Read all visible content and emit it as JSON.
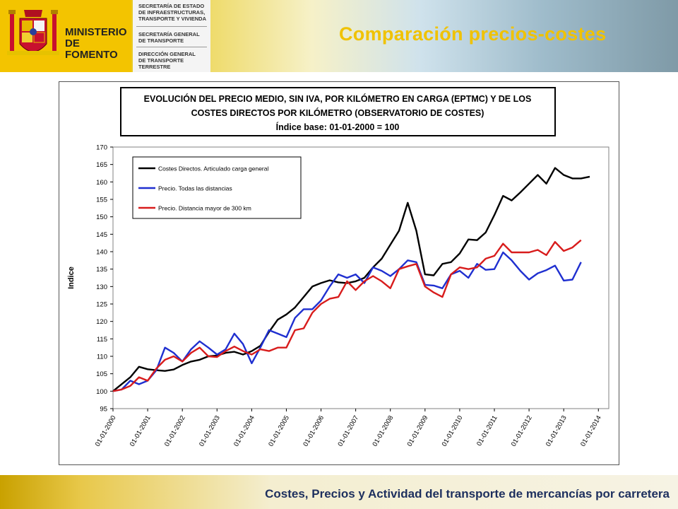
{
  "header": {
    "ministry_line1": "MINISTERIO",
    "ministry_line2": "DE FOMENTO",
    "dept_lines_1": [
      "SECRETARÍA DE ESTADO",
      "DE INFRAESTRUCTURAS,",
      "TRANSPORTE Y VIVIENDA"
    ],
    "dept_lines_2": [
      "SECRETARÍA GENERAL",
      "DE TRANSPORTE"
    ],
    "dept_lines_3": [
      "DIRECCIÓN GENERAL",
      "DE TRANSPORTE",
      "TERRESTRE"
    ],
    "slide_title": "Comparación precios-costes",
    "crest_icon": "coat-of-arms-icon"
  },
  "footer": {
    "text": "Costes, Precios y Actividad del transporte de mercancías por carretera"
  },
  "colors": {
    "accent_yellow": "#f0c200",
    "footer_blue": "#1d2f5e",
    "series_costes": "#000000",
    "series_todas": "#1f2fd0",
    "series_300": "#d81c1c"
  },
  "chart_data": {
    "type": "line",
    "title_lines": [
      "EVOLUCIÓN DEL PRECIO MEDIO, SIN IVA, POR KILÓMETRO EN CARGA (EPTMC) Y DE LOS",
      "COSTES DIRECTOS POR KILÓMETRO (OBSERVATORIO DE COSTES)",
      "Índice base: 01-01-2000 = 100"
    ],
    "ylabel": "Indice",
    "xlabel": "",
    "ylim": [
      95,
      170
    ],
    "yticks": [
      95,
      100,
      105,
      110,
      115,
      120,
      125,
      130,
      135,
      140,
      145,
      150,
      155,
      160,
      165,
      170
    ],
    "xlim": [
      2000,
      2014.3
    ],
    "xtick_labels": [
      "01-01-2000",
      "01-01-2001",
      "01-01-2002",
      "01-01-2003",
      "01-01-2004",
      "01-01-2005",
      "01-01-2006",
      "01-01-2007",
      "01-01-2008",
      "01-01-2009",
      "01-01-2010",
      "01-01-2011",
      "01-01-2012",
      "01-01-2013",
      "01-01-2014"
    ],
    "grid": false,
    "legend": "top-left",
    "series": [
      {
        "name": "Costes Directos. Articulado carga general",
        "color": "#000000",
        "points": [
          [
            2000.0,
            100
          ],
          [
            2000.5,
            104
          ],
          [
            2000.75,
            107
          ],
          [
            2001.0,
            106.3
          ],
          [
            2001.25,
            106
          ],
          [
            2001.5,
            105.8
          ],
          [
            2001.75,
            106.2
          ],
          [
            2002.0,
            107.5
          ],
          [
            2002.25,
            108.5
          ],
          [
            2002.5,
            109
          ],
          [
            2002.75,
            110
          ],
          [
            2003.0,
            110.2
          ],
          [
            2003.25,
            111
          ],
          [
            2003.5,
            111.3
          ],
          [
            2003.75,
            110.5
          ],
          [
            2004.0,
            111.5
          ],
          [
            2004.25,
            113
          ],
          [
            2004.5,
            117
          ],
          [
            2004.75,
            120.5
          ],
          [
            2005.0,
            122
          ],
          [
            2005.25,
            124
          ],
          [
            2005.5,
            127
          ],
          [
            2005.75,
            130
          ],
          [
            2006.0,
            131
          ],
          [
            2006.25,
            131.8
          ],
          [
            2006.5,
            131.2
          ],
          [
            2006.75,
            131
          ],
          [
            2007.0,
            131.5
          ],
          [
            2007.25,
            132.5
          ],
          [
            2007.5,
            135.5
          ],
          [
            2007.75,
            138
          ],
          [
            2008.0,
            142
          ],
          [
            2008.25,
            146
          ],
          [
            2008.5,
            154
          ],
          [
            2008.75,
            146
          ],
          [
            2009.0,
            133.5
          ],
          [
            2009.25,
            133.2
          ],
          [
            2009.5,
            136.5
          ],
          [
            2009.75,
            137
          ],
          [
            2010.0,
            139.5
          ],
          [
            2010.25,
            143.5
          ],
          [
            2010.5,
            143.3
          ],
          [
            2010.75,
            145.5
          ],
          [
            2011.0,
            150.5
          ],
          [
            2011.25,
            156
          ],
          [
            2011.5,
            154.7
          ],
          [
            2011.75,
            157
          ],
          [
            2012.0,
            159.5
          ],
          [
            2012.25,
            162
          ],
          [
            2012.5,
            159.5
          ],
          [
            2012.75,
            164
          ],
          [
            2013.0,
            162
          ],
          [
            2013.25,
            161
          ],
          [
            2013.5,
            161
          ],
          [
            2013.75,
            161.5
          ]
        ]
      },
      {
        "name": "Precio. Todas las distancias",
        "color": "#1f2fd0",
        "points": [
          [
            2000.0,
            100
          ],
          [
            2000.25,
            100.5
          ],
          [
            2000.5,
            103
          ],
          [
            2000.75,
            102
          ],
          [
            2001.0,
            103
          ],
          [
            2001.25,
            106
          ],
          [
            2001.5,
            112.5
          ],
          [
            2001.75,
            111
          ],
          [
            2002.0,
            108.5
          ],
          [
            2002.25,
            112
          ],
          [
            2002.5,
            114.3
          ],
          [
            2002.75,
            112.5
          ],
          [
            2003.0,
            110.5
          ],
          [
            2003.25,
            112
          ],
          [
            2003.5,
            116.5
          ],
          [
            2003.75,
            113.5
          ],
          [
            2004.0,
            108
          ],
          [
            2004.25,
            112.5
          ],
          [
            2004.5,
            117.5
          ],
          [
            2004.75,
            116.5
          ],
          [
            2005.0,
            115.5
          ],
          [
            2005.25,
            121
          ],
          [
            2005.5,
            123.5
          ],
          [
            2005.75,
            123.5
          ],
          [
            2006.0,
            126
          ],
          [
            2006.25,
            130
          ],
          [
            2006.5,
            133.5
          ],
          [
            2006.75,
            132.5
          ],
          [
            2007.0,
            133.5
          ],
          [
            2007.25,
            131
          ],
          [
            2007.5,
            135.5
          ],
          [
            2007.75,
            134.5
          ],
          [
            2008.0,
            133
          ],
          [
            2008.25,
            135
          ],
          [
            2008.5,
            137.5
          ],
          [
            2008.75,
            137
          ],
          [
            2009.0,
            130.5
          ],
          [
            2009.25,
            130.3
          ],
          [
            2009.5,
            129.5
          ],
          [
            2009.75,
            133.5
          ],
          [
            2010.0,
            134.5
          ],
          [
            2010.25,
            132.5
          ],
          [
            2010.5,
            136.5
          ],
          [
            2010.75,
            134.8
          ],
          [
            2011.0,
            135
          ],
          [
            2011.25,
            139.8
          ],
          [
            2011.5,
            137.5
          ],
          [
            2011.75,
            134.5
          ],
          [
            2012.0,
            132
          ],
          [
            2012.25,
            133.8
          ],
          [
            2012.5,
            134.7
          ],
          [
            2012.75,
            136
          ],
          [
            2013.0,
            131.7
          ],
          [
            2013.25,
            132
          ],
          [
            2013.5,
            137
          ]
        ]
      },
      {
        "name": "Precio. Distancia mayor de 300 km",
        "color": "#d81c1c",
        "points": [
          [
            2000.0,
            100
          ],
          [
            2000.25,
            100.5
          ],
          [
            2000.5,
            101.5
          ],
          [
            2000.75,
            104
          ],
          [
            2001.0,
            103
          ],
          [
            2001.25,
            106.5
          ],
          [
            2001.5,
            109
          ],
          [
            2001.75,
            110
          ],
          [
            2002.0,
            108.5
          ],
          [
            2002.25,
            111
          ],
          [
            2002.5,
            112.5
          ],
          [
            2002.75,
            110
          ],
          [
            2003.0,
            109.8
          ],
          [
            2003.25,
            111.5
          ],
          [
            2003.5,
            112.8
          ],
          [
            2003.75,
            111.5
          ],
          [
            2004.0,
            110.5
          ],
          [
            2004.25,
            112
          ],
          [
            2004.5,
            111.5
          ],
          [
            2004.75,
            112.5
          ],
          [
            2005.0,
            112.5
          ],
          [
            2005.25,
            117.5
          ],
          [
            2005.5,
            118
          ],
          [
            2005.75,
            122.5
          ],
          [
            2006.0,
            125
          ],
          [
            2006.25,
            126.5
          ],
          [
            2006.5,
            127
          ],
          [
            2006.75,
            131.5
          ],
          [
            2007.0,
            129
          ],
          [
            2007.25,
            131.5
          ],
          [
            2007.5,
            133
          ],
          [
            2007.75,
            131.5
          ],
          [
            2008.0,
            129.5
          ],
          [
            2008.25,
            135
          ],
          [
            2008.5,
            135.8
          ],
          [
            2008.75,
            136.5
          ],
          [
            2009.0,
            130
          ],
          [
            2009.25,
            128.3
          ],
          [
            2009.5,
            127
          ],
          [
            2009.75,
            133.5
          ],
          [
            2010.0,
            135.5
          ],
          [
            2010.25,
            135
          ],
          [
            2010.5,
            135.5
          ],
          [
            2010.75,
            138
          ],
          [
            2011.0,
            138.8
          ],
          [
            2011.25,
            142.3
          ],
          [
            2011.5,
            139.8
          ],
          [
            2011.75,
            139.8
          ],
          [
            2012.0,
            139.8
          ],
          [
            2012.25,
            140.5
          ],
          [
            2012.5,
            139
          ],
          [
            2012.75,
            142.8
          ],
          [
            2013.0,
            140.2
          ],
          [
            2013.25,
            141.2
          ],
          [
            2013.5,
            143.3
          ]
        ]
      }
    ]
  }
}
